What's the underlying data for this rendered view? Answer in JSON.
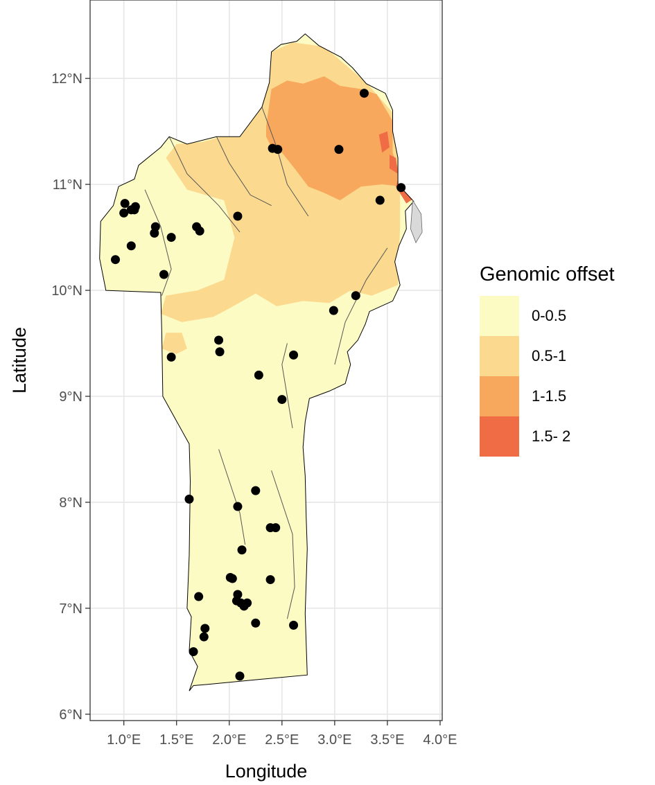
{
  "map": {
    "region": "Benin",
    "x_axis": {
      "title": "Longitude",
      "range": [
        0.68,
        4.02
      ],
      "ticks": [
        1.0,
        1.5,
        2.0,
        2.5,
        3.0,
        3.5,
        4.0
      ],
      "tick_labels": [
        "1.0°E",
        "1.5°E",
        "2.0°E",
        "2.5°E",
        "3.0°E",
        "3.5°E",
        "4.0°E"
      ]
    },
    "y_axis": {
      "title": "Latitude",
      "range": [
        5.94,
        12.74
      ],
      "ticks": [
        6,
        7,
        8,
        9,
        10,
        11,
        12
      ],
      "tick_labels": [
        "6°N",
        "7°N",
        "8°N",
        "9°N",
        "10°N",
        "11°N",
        "12°N"
      ]
    },
    "grid": true,
    "colors": {
      "outline": "#000000",
      "grid": "#e6e6e6",
      "panel_border": "#333333",
      "point": "#000000"
    }
  },
  "legend": {
    "title": "Genomic offset",
    "placement": "right",
    "entries": [
      {
        "label": "0-0.5",
        "color": "#fdfbc4"
      },
      {
        "label": "0.5-1",
        "color": "#fbd98f"
      },
      {
        "label": "1-1.5",
        "color": "#f8a85d"
      },
      {
        "label": "1.5- 2",
        "color": "#f06c45"
      }
    ]
  },
  "chart_data": {
    "type": "scatter",
    "title": "",
    "xlabel": "Longitude",
    "ylabel": "Latitude",
    "xlim": [
      0.68,
      4.02
    ],
    "ylim": [
      5.94,
      12.74
    ],
    "series": [
      {
        "points": [
          [
            1.01,
            10.82
          ],
          [
            1.0,
            10.73
          ],
          [
            1.07,
            10.76
          ],
          [
            1.11,
            10.79
          ],
          [
            1.1,
            10.76
          ],
          [
            0.92,
            10.29
          ],
          [
            1.07,
            10.42
          ],
          [
            1.3,
            10.6
          ],
          [
            1.29,
            10.54
          ],
          [
            1.45,
            10.5
          ],
          [
            1.38,
            10.15
          ],
          [
            1.69,
            10.6
          ],
          [
            1.72,
            10.56
          ],
          [
            2.08,
            10.7
          ],
          [
            2.41,
            11.34
          ],
          [
            2.46,
            11.33
          ],
          [
            3.04,
            11.33
          ],
          [
            3.28,
            11.86
          ],
          [
            3.63,
            10.97
          ],
          [
            3.43,
            10.85
          ],
          [
            3.2,
            9.95
          ],
          [
            2.99,
            9.81
          ],
          [
            1.9,
            9.53
          ],
          [
            1.91,
            9.42
          ],
          [
            1.45,
            9.37
          ],
          [
            2.61,
            9.39
          ],
          [
            2.28,
            9.2
          ],
          [
            2.5,
            8.97
          ],
          [
            1.62,
            8.03
          ],
          [
            2.08,
            7.96
          ],
          [
            2.25,
            8.11
          ],
          [
            2.39,
            7.76
          ],
          [
            2.44,
            7.76
          ],
          [
            2.12,
            7.55
          ],
          [
            2.01,
            7.29
          ],
          [
            2.03,
            7.28
          ],
          [
            2.39,
            7.27
          ],
          [
            1.71,
            7.11
          ],
          [
            2.08,
            7.13
          ],
          [
            2.07,
            7.07
          ],
          [
            2.11,
            7.05
          ],
          [
            2.14,
            7.02
          ],
          [
            2.17,
            7.05
          ],
          [
            1.77,
            6.81
          ],
          [
            1.76,
            6.73
          ],
          [
            2.25,
            6.86
          ],
          [
            2.61,
            6.84
          ],
          [
            1.66,
            6.59
          ],
          [
            2.1,
            6.36
          ]
        ]
      }
    ]
  }
}
